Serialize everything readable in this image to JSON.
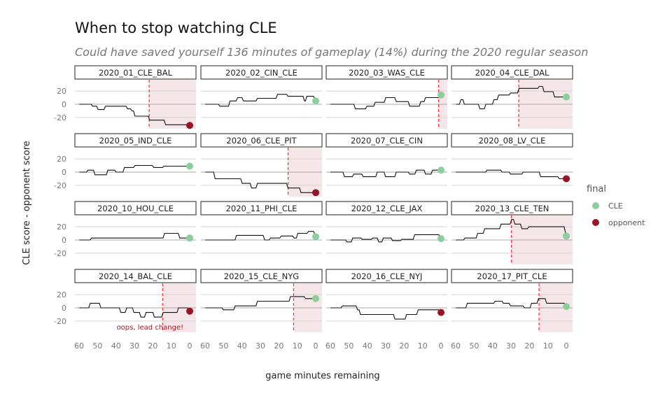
{
  "chart_data": {
    "type": "line",
    "title": "When to stop watching CLE",
    "subtitle": "Could have saved yourself 136 minutes of gameplay (14%) during the 2020 regular season",
    "xlabel": "game minutes remaining",
    "ylabel": "CLE score - opponent score",
    "xlim": [
      62.3,
      -3.4
    ],
    "ylim": [
      -37,
      37
    ],
    "x_ticks": [
      "60",
      "50",
      "40",
      "30",
      "20",
      "10",
      "0"
    ],
    "y_ticks": [
      "20",
      "0",
      "-20"
    ],
    "legend": {
      "title": "final",
      "position": "right",
      "entries": [
        {
          "label": "CLE",
          "color": "#8ccf9b"
        },
        {
          "label": "opponent",
          "color": "#9b1424"
        }
      ]
    },
    "colors": {
      "line": "#111111",
      "shade": "#f4e6e9",
      "stop_line": "#ff2a2a",
      "grid": "#d3d3d3",
      "zero": "#a8a8a8"
    },
    "games": [
      {
        "name": "2020_01_CLE_BAL",
        "final": -32,
        "winner": "opponent",
        "stop": 22,
        "points": [
          [
            60,
            0
          ],
          [
            53,
            -3
          ],
          [
            50,
            -8
          ],
          [
            46,
            -3
          ],
          [
            34,
            -7
          ],
          [
            31.6,
            -10
          ],
          [
            30,
            -18
          ],
          [
            22,
            -24
          ],
          [
            13.4,
            -31
          ]
        ]
      },
      {
        "name": "2020_02_CIN_CLE",
        "final": 5,
        "winner": "CLE",
        "stop": null,
        "points": [
          [
            60,
            0
          ],
          [
            52.3,
            -3
          ],
          [
            46.8,
            5
          ],
          [
            42.7,
            10
          ],
          [
            39.5,
            5
          ],
          [
            31.9,
            9
          ],
          [
            21,
            15
          ],
          [
            15.3,
            12
          ],
          [
            6.4,
            5
          ],
          [
            5.1,
            12
          ]
        ]
      },
      {
        "name": "2020_03_WAS_CLE",
        "final": 14,
        "winner": "CLE",
        "stop": 1.3,
        "points": [
          [
            60,
            0
          ],
          [
            46.8,
            -7
          ],
          [
            40.5,
            -3
          ],
          [
            36,
            3
          ],
          [
            30.3,
            10
          ],
          [
            24.6,
            4
          ],
          [
            17.3,
            -3
          ],
          [
            11.3,
            4
          ],
          [
            8.7,
            10
          ]
        ]
      },
      {
        "name": "2020_04_CLE_DAL",
        "final": 11,
        "winner": "CLE",
        "stop": 25.8,
        "points": [
          [
            60,
            0
          ],
          [
            57.5,
            7
          ],
          [
            55.6,
            0
          ],
          [
            47.2,
            -7
          ],
          [
            44,
            0
          ],
          [
            39.6,
            7
          ],
          [
            37,
            14
          ],
          [
            30.6,
            17
          ],
          [
            26,
            24
          ],
          [
            15,
            27
          ],
          [
            12.4,
            19
          ],
          [
            6.7,
            11
          ]
        ]
      },
      {
        "name": "2020_05_IND_CLE",
        "final": 9,
        "winner": "CLE",
        "stop": null,
        "points": [
          [
            60,
            0
          ],
          [
            55.5,
            3
          ],
          [
            51.7,
            -4
          ],
          [
            44.7,
            3
          ],
          [
            40.2,
            0
          ],
          [
            35.7,
            7
          ],
          [
            30,
            10
          ],
          [
            19.8,
            7
          ],
          [
            14.3,
            9
          ]
        ]
      },
      {
        "name": "2020_06_CLE_PIT",
        "final": -31,
        "winner": "opponent",
        "stop": 15,
        "points": [
          [
            60,
            0
          ],
          [
            54.9,
            -10
          ],
          [
            40.2,
            -17
          ],
          [
            35.1,
            -24
          ],
          [
            31.9,
            -17
          ],
          [
            15.3,
            -24
          ],
          [
            8.3,
            -31
          ]
        ]
      },
      {
        "name": "2020_07_CLE_CIN",
        "final": 3,
        "winner": "CLE",
        "stop": null,
        "points": [
          [
            60,
            0
          ],
          [
            52.7,
            -7
          ],
          [
            47.6,
            -3
          ],
          [
            42.5,
            -7
          ],
          [
            34.9,
            0
          ],
          [
            30.4,
            -7
          ],
          [
            24.6,
            0
          ],
          [
            17.3,
            -3
          ],
          [
            13.7,
            3
          ],
          [
            8.7,
            -3
          ],
          [
            4.9,
            3
          ]
        ]
      },
      {
        "name": "2020_08_LV_CLE",
        "final": -10,
        "winner": "opponent",
        "stop": null,
        "points": [
          [
            60,
            0
          ],
          [
            43.3,
            3
          ],
          [
            35.1,
            0
          ],
          [
            30.6,
            -3
          ],
          [
            23.7,
            0
          ],
          [
            14.2,
            -7
          ],
          [
            4.1,
            -10
          ]
        ]
      },
      {
        "name": "2020_10_HOU_CLE",
        "final": 3,
        "winner": "CLE",
        "stop": null,
        "points": [
          [
            60,
            0
          ],
          [
            53.6,
            3
          ],
          [
            14,
            10
          ],
          [
            5.7,
            3
          ]
        ]
      },
      {
        "name": "2020_11_PHI_CLE",
        "final": 5,
        "winner": "CLE",
        "stop": null,
        "points": [
          [
            60,
            0
          ],
          [
            43.3,
            7
          ],
          [
            28,
            0
          ],
          [
            24.8,
            3
          ],
          [
            19,
            6
          ],
          [
            12,
            3
          ],
          [
            10,
            10
          ],
          [
            4.2,
            13
          ]
        ]
      },
      {
        "name": "2020_12_CLE_JAX",
        "final": 2,
        "winner": "CLE",
        "stop": null,
        "points": [
          [
            60,
            0
          ],
          [
            51.3,
            -3
          ],
          [
            48.2,
            3
          ],
          [
            43,
            1
          ],
          [
            37.3,
            3
          ],
          [
            34.1,
            -3
          ],
          [
            31.6,
            3
          ],
          [
            26.6,
            -1
          ],
          [
            21.5,
            1
          ],
          [
            14.6,
            8
          ]
        ]
      },
      {
        "name": "2020_13_CLE_TEN",
        "final": 6,
        "winner": "CLE",
        "stop": 29.8,
        "points": [
          [
            60,
            0
          ],
          [
            55.3,
            3
          ],
          [
            48.4,
            10
          ],
          [
            44.6,
            17
          ],
          [
            35.7,
            24
          ],
          [
            30,
            31
          ],
          [
            28.2,
            24
          ],
          [
            24.4,
            17
          ],
          [
            20.6,
            20
          ]
        ]
      },
      {
        "name": "2020_14_BAL_CLE",
        "final": -5,
        "winner": "opponent",
        "stop": 14.7,
        "annotation": "oops, lead change!",
        "points": [
          [
            60,
            0
          ],
          [
            54.3,
            7
          ],
          [
            48.5,
            0
          ],
          [
            37.7,
            -7
          ],
          [
            34.5,
            0
          ],
          [
            30.6,
            -7
          ],
          [
            26.8,
            -14
          ],
          [
            24,
            -7
          ],
          [
            19.5,
            -14
          ],
          [
            14.7,
            -7
          ],
          [
            6.4,
            0
          ]
        ]
      },
      {
        "name": "2020_15_CLE_NYG",
        "final": 14,
        "winner": "CLE",
        "stop": 12,
        "points": [
          [
            60,
            0
          ],
          [
            50.4,
            -3
          ],
          [
            44,
            3
          ],
          [
            31.9,
            10
          ],
          [
            14,
            17
          ],
          [
            5.8,
            14
          ]
        ]
      },
      {
        "name": "2020_16_CLE_NYJ",
        "final": -7,
        "winner": "opponent",
        "stop": null,
        "points": [
          [
            60,
            0
          ],
          [
            53.8,
            3
          ],
          [
            45.6,
            -3
          ],
          [
            44,
            -10
          ],
          [
            25.3,
            -17
          ],
          [
            19,
            -10
          ],
          [
            12.7,
            -3
          ]
        ]
      },
      {
        "name": "2020_17_PIT_CLE",
        "final": 2,
        "winner": "CLE",
        "stop": 14.8,
        "points": [
          [
            60,
            0
          ],
          [
            54,
            7
          ],
          [
            38.9,
            10
          ],
          [
            34.4,
            7
          ],
          [
            30.6,
            3
          ],
          [
            23,
            0
          ],
          [
            19.2,
            7
          ],
          [
            15.4,
            14
          ],
          [
            11,
            7
          ]
        ]
      }
    ]
  }
}
